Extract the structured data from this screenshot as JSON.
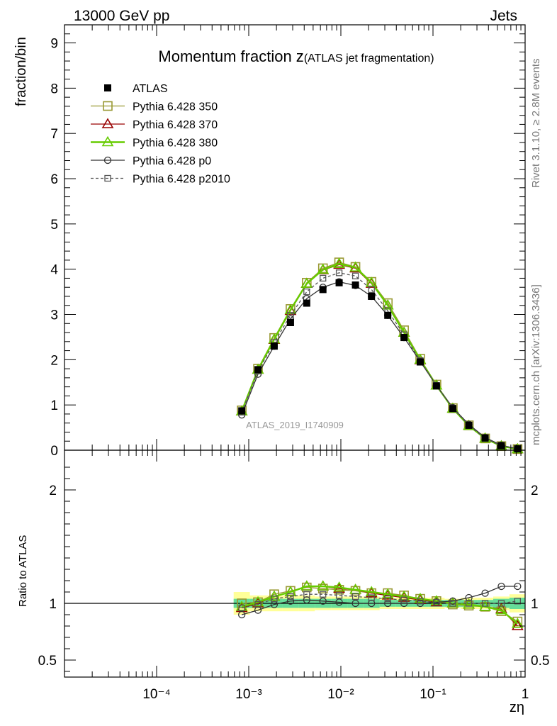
{
  "header": {
    "left": "13000 GeV pp",
    "right": "Jets"
  },
  "side_texts": {
    "rivet": "Rivet 3.1.10, ≥ 2.8M events",
    "mcplots": "mcplots.cern.ch [arXiv:1306.3436]"
  },
  "chart_data": {
    "type": "line",
    "title_main": "Momentum fraction z",
    "title_sub": "(ATLAS jet fragmentation)",
    "analysis_id": "ATLAS_2019_I1740909",
    "xlabel": "zη",
    "ylabel_top": "fraction/bin",
    "ylabel_bottom": "Ratio to ATLAS",
    "x_scale": "log",
    "xlim": [
      1e-05,
      1
    ],
    "x_tick_labels": [
      "10⁻⁴",
      "10⁻³",
      "10⁻²",
      "10⁻¹",
      "1"
    ],
    "x_tick_values": [
      0.0001,
      0.001,
      0.01,
      0.1,
      1
    ],
    "ylim_top": [
      0,
      9.4
    ],
    "y_ticks_top": [
      0,
      1,
      2,
      3,
      4,
      5,
      6,
      7,
      8,
      9
    ],
    "ylim_bottom": [
      0.35,
      2.35
    ],
    "y_ticks_bottom": [
      0.5,
      1,
      2
    ],
    "legend_position": "top-left",
    "x": [
      0.00084,
      0.00126,
      0.00189,
      0.00284,
      0.00426,
      0.00639,
      0.00958,
      0.0144,
      0.0215,
      0.0323,
      0.0485,
      0.0727,
      0.109,
      0.164,
      0.245,
      0.368,
      0.552,
      0.828
    ],
    "data": {
      "name": "ATLAS",
      "values": [
        0.87,
        1.78,
        2.3,
        2.82,
        3.25,
        3.55,
        3.7,
        3.65,
        3.4,
        2.98,
        2.49,
        1.95,
        1.42,
        0.92,
        0.55,
        0.27,
        0.1,
        0.03
      ],
      "band_inner": [
        0.04,
        0.04,
        0.04,
        0.04,
        0.04,
        0.04,
        0.04,
        0.04,
        0.04,
        0.03,
        0.03,
        0.03,
        0.03,
        0.03,
        0.03,
        0.03,
        0.04,
        0.05
      ],
      "band_outer": [
        0.1,
        0.07,
        0.07,
        0.07,
        0.07,
        0.06,
        0.06,
        0.06,
        0.06,
        0.05,
        0.05,
        0.05,
        0.05,
        0.04,
        0.05,
        0.05,
        0.06,
        0.08
      ]
    },
    "series": [
      {
        "name": "Pythia 6.428 350",
        "color": "#999933",
        "marker": "square-open",
        "dash": "solid",
        "values": [
          0.88,
          1.8,
          2.48,
          3.12,
          3.7,
          4.02,
          4.15,
          4.05,
          3.72,
          3.25,
          2.65,
          2.02,
          1.45,
          0.93,
          0.55,
          0.26,
          0.09,
          0.025
        ],
        "ratio": [
          1.0,
          1.01,
          1.08,
          1.11,
          1.14,
          1.13,
          1.12,
          1.11,
          1.09,
          1.09,
          1.07,
          1.04,
          1.02,
          0.99,
          0.98,
          0.97,
          0.93,
          0.84
        ]
      },
      {
        "name": "Pythia 6.428 370",
        "color": "#990000",
        "marker": "triangle-open",
        "dash": "solid",
        "values": [
          0.86,
          1.78,
          2.44,
          3.08,
          3.68,
          3.98,
          4.1,
          4.02,
          3.68,
          3.2,
          2.6,
          1.99,
          1.43,
          0.92,
          0.54,
          0.26,
          0.09,
          0.024
        ],
        "ratio": [
          0.96,
          1.0,
          1.06,
          1.1,
          1.15,
          1.15,
          1.13,
          1.12,
          1.09,
          1.07,
          1.05,
          1.03,
          1.01,
          1.0,
          0.99,
          0.97,
          0.95,
          0.8
        ]
      },
      {
        "name": "Pythia 6.428 380",
        "color": "#66cc00",
        "marker": "triangle-open",
        "dash": "solid",
        "values": [
          0.86,
          1.78,
          2.45,
          3.1,
          3.68,
          3.99,
          4.12,
          4.04,
          3.7,
          3.2,
          2.6,
          2.0,
          1.43,
          0.92,
          0.54,
          0.26,
          0.09,
          0.024
        ],
        "ratio": [
          0.97,
          1.01,
          1.06,
          1.1,
          1.15,
          1.15,
          1.14,
          1.12,
          1.1,
          1.08,
          1.06,
          1.04,
          1.02,
          1.0,
          0.99,
          0.97,
          0.94,
          0.82
        ]
      },
      {
        "name": "Pythia 6.428 p0",
        "color": "#333333",
        "marker": "circle-open",
        "dash": "solid",
        "values": [
          0.78,
          1.68,
          2.3,
          2.9,
          3.35,
          3.6,
          3.72,
          3.64,
          3.4,
          2.98,
          2.49,
          1.96,
          1.43,
          0.94,
          0.57,
          0.28,
          0.11,
          0.03
        ],
        "ratio": [
          0.9,
          0.94,
          0.99,
          1.02,
          1.03,
          1.02,
          1.01,
          1.0,
          1.0,
          1.0,
          1.0,
          1.0,
          1.01,
          1.02,
          1.05,
          1.09,
          1.15,
          1.15
        ]
      },
      {
        "name": "Pythia 6.428 p2010",
        "color": "#555555",
        "marker": "square-small-open",
        "dash": "dashed",
        "values": [
          0.84,
          1.75,
          2.38,
          2.98,
          3.5,
          3.8,
          3.92,
          3.85,
          3.55,
          3.08,
          2.55,
          1.98,
          1.43,
          0.93,
          0.55,
          0.26,
          0.1,
          0.03
        ],
        "ratio": [
          0.96,
          0.99,
          1.04,
          1.06,
          1.08,
          1.08,
          1.07,
          1.06,
          1.05,
          1.04,
          1.03,
          1.02,
          1.01,
          1.0,
          1.0,
          1.0,
          1.0,
          1.02
        ]
      }
    ]
  }
}
